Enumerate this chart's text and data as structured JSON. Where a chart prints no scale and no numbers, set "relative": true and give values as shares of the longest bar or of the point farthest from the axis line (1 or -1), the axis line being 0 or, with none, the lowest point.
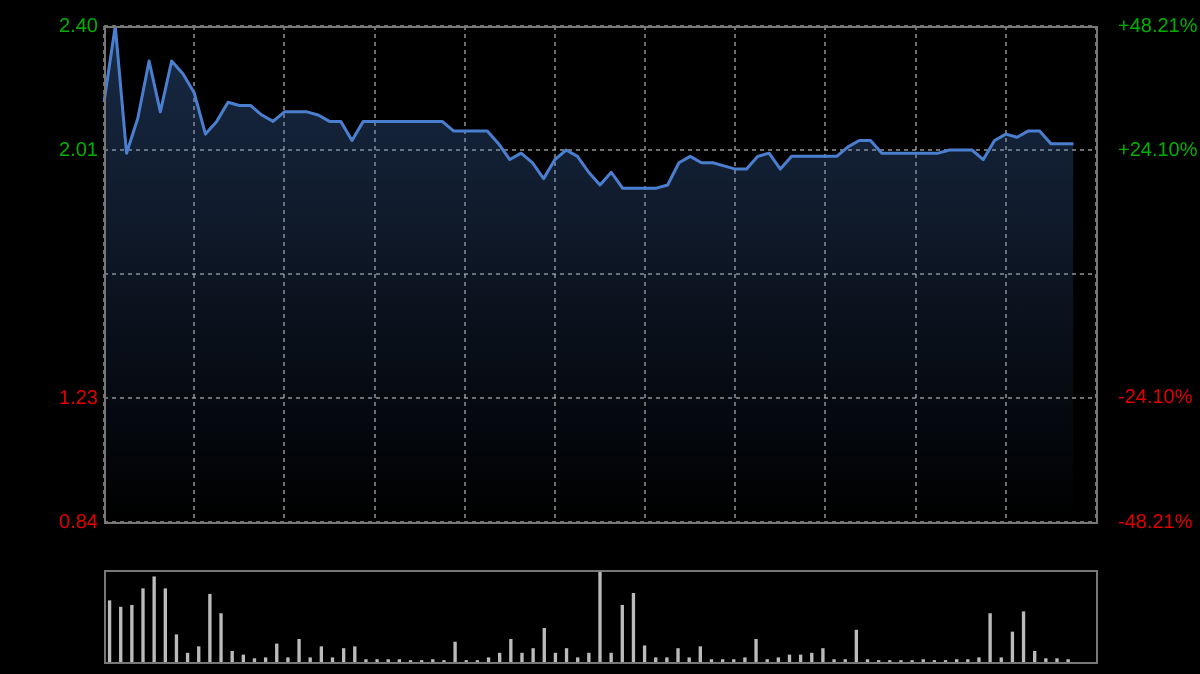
{
  "chart_data": [
    {
      "type": "area",
      "categories": [
        null,
        null,
        null,
        null,
        null,
        null,
        null,
        null,
        null,
        null,
        null,
        null,
        null,
        null,
        null,
        null,
        null,
        null,
        null,
        null,
        null,
        null,
        null,
        null,
        null,
        null,
        null,
        null,
        null,
        null,
        null,
        null,
        null,
        null,
        null,
        null,
        null,
        null,
        null,
        null,
        null,
        null,
        null,
        null,
        null,
        null,
        null,
        null,
        null,
        null,
        null,
        null,
        null,
        null,
        null,
        null,
        null,
        null,
        null,
        null,
        null,
        null,
        null,
        null,
        null,
        null,
        null,
        null,
        null,
        null,
        null,
        null,
        null,
        null,
        null,
        null,
        null,
        null,
        null,
        null,
        null,
        null,
        null,
        null,
        null,
        null,
        null,
        null,
        null
      ],
      "series": [
        {
          "color": "#4a7fd0",
          "values": [
            2.16,
            2.4,
            2.0,
            2.11,
            2.29,
            2.13,
            2.29,
            2.25,
            2.19,
            2.06,
            2.1,
            2.16,
            2.15,
            2.15,
            2.12,
            2.1,
            2.13,
            2.13,
            2.13,
            2.12,
            2.1,
            2.1,
            2.04,
            2.1,
            2.1,
            2.1,
            2.1,
            2.1,
            2.1,
            2.1,
            2.1,
            2.07,
            2.07,
            2.07,
            2.07,
            2.03,
            1.98,
            2.0,
            1.97,
            1.92,
            1.98,
            2.01,
            1.99,
            1.94,
            1.9,
            1.94,
            1.89,
            1.89,
            1.89,
            1.89,
            1.9,
            1.97,
            1.99,
            1.97,
            1.97,
            1.96,
            1.95,
            1.95,
            1.99,
            2.0,
            1.95,
            1.99,
            1.99,
            1.99,
            1.99,
            1.99,
            2.02,
            2.04,
            2.04,
            2.0,
            2.0,
            2.0,
            2.0,
            2.0,
            2.0,
            2.01,
            2.01,
            2.01,
            1.98,
            2.04,
            2.06,
            2.05,
            2.07,
            2.07,
            2.03,
            2.03,
            2.03,
            null,
            null
          ]
        }
      ],
      "ylim": [
        0.84,
        2.4
      ],
      "yticks": [
        0.84,
        1.23,
        {
          "value": 1.62,
          "label": null
        },
        2.01,
        {
          "value": 2.4,
          "label": "2.40"
        }
      ],
      "y2lim": [
        -48.21,
        48.21
      ],
      "y2ticks": [
        {
          "value": -48.21,
          "label": "-48.21%"
        },
        {
          "value": -24.1,
          "label": "-24.10%"
        },
        {
          "value": 0,
          "label": null
        },
        {
          "value": 24.1,
          "label": "+24.10%"
        },
        {
          "value": 48.21,
          "label": "+48.21%"
        }
      ],
      "grid": true,
      "legend": false
    },
    {
      "type": "bar",
      "relative": true,
      "categories": [
        null,
        null,
        null,
        null,
        null,
        null,
        null,
        null,
        null,
        null,
        null,
        null,
        null,
        null,
        null,
        null,
        null,
        null,
        null,
        null,
        null,
        null,
        null,
        null,
        null,
        null,
        null,
        null,
        null,
        null,
        null,
        null,
        null,
        null,
        null,
        null,
        null,
        null,
        null,
        null,
        null,
        null,
        null,
        null,
        null,
        null,
        null,
        null,
        null,
        null,
        null,
        null,
        null,
        null,
        null,
        null,
        null,
        null,
        null,
        null,
        null,
        null,
        null,
        null,
        null,
        null,
        null,
        null,
        null,
        null,
        null,
        null,
        null,
        null,
        null,
        null,
        null,
        null,
        null,
        null,
        null,
        null,
        null,
        null,
        null,
        null,
        null,
        null,
        null
      ],
      "color": "#bbbbbb",
      "values": [
        0.67,
        0.6,
        0.62,
        0.8,
        0.93,
        0.8,
        0.3,
        0.1,
        0.17,
        0.74,
        0.53,
        0.12,
        0.08,
        0.04,
        0.05,
        0.2,
        0.05,
        0.25,
        0.05,
        0.17,
        0.05,
        0.15,
        0.17,
        0.03,
        0.03,
        0.03,
        0.03,
        0.02,
        0.02,
        0.03,
        0.02,
        0.22,
        0.02,
        0.02,
        0.05,
        0.1,
        0.25,
        0.1,
        0.15,
        0.37,
        0.1,
        0.15,
        0.05,
        0.1,
        1.0,
        0.1,
        0.62,
        0.75,
        0.18,
        0.05,
        0.05,
        0.15,
        0.05,
        0.17,
        0.03,
        0.03,
        0.03,
        0.05,
        0.25,
        0.03,
        0.05,
        0.08,
        0.08,
        0.1,
        0.15,
        0.03,
        0.03,
        0.35,
        0.03,
        0.02,
        0.02,
        0.02,
        0.02,
        0.03,
        0.02,
        0.02,
        0.03,
        0.03,
        0.05,
        0.53,
        0.05,
        0.33,
        0.55,
        0.12,
        0.04,
        0.04,
        0.03,
        null,
        null
      ],
      "grid": false,
      "legend": false
    }
  ]
}
